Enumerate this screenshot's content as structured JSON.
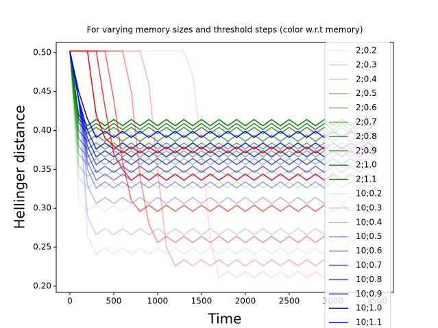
{
  "chart_data": {
    "type": "line",
    "title": "For varying memory sizes and threshold steps (color w.r.t memory)",
    "x_label": "Time",
    "y_label": "Hellinger distance",
    "xlim": [
      -156,
      3688
    ],
    "ylim": [
      0.192,
      0.513
    ],
    "xticks": [
      0,
      500,
      1000,
      1500,
      2000,
      2500,
      3000,
      3500
    ],
    "yticks": [
      {
        "value": 0.2,
        "label": "0.20"
      },
      0.25,
      {
        "value": 0.3,
        "label": "0.30"
      },
      0.35,
      {
        "value": 0.4,
        "label": "0.40"
      },
      0.45,
      {
        "value": 0.5,
        "label": "0.50"
      }
    ],
    "legend": "upper right",
    "x": [
      0,
      100,
      200,
      300,
      400,
      500,
      600,
      700,
      800,
      900,
      1000,
      1100,
      1200,
      1300,
      1400,
      1500,
      1600,
      1700,
      1800,
      1900,
      2000,
      2100,
      2200,
      2300,
      2400,
      2500,
      2600,
      2700,
      2800,
      2900,
      3000,
      3100,
      3200,
      3300,
      3400,
      3500
    ],
    "series": [
      {
        "name": "2;0.2",
        "color": "rgba(0,128,0,0.1)",
        "values": [
          0.502,
          0.31,
          0.296,
          0.304,
          0.296,
          0.304,
          0.296,
          0.304,
          0.296,
          0.304,
          0.296,
          0.304,
          0.296,
          0.304,
          0.296,
          0.304,
          0.296,
          0.304,
          0.296,
          0.304,
          0.296,
          0.304,
          0.296,
          0.304,
          0.296,
          0.304,
          0.296,
          0.304,
          0.296,
          0.304,
          0.296,
          0.304,
          0.296,
          0.304,
          0.296,
          0.304
        ]
      },
      {
        "name": "2;0.3",
        "color": "rgba(0,128,0,0.2)",
        "values": [
          0.502,
          0.34,
          0.326,
          0.334,
          0.326,
          0.334,
          0.326,
          0.334,
          0.326,
          0.334,
          0.326,
          0.334,
          0.326,
          0.334,
          0.326,
          0.334,
          0.326,
          0.334,
          0.326,
          0.334,
          0.326,
          0.334,
          0.326,
          0.334,
          0.326,
          0.334,
          0.326,
          0.334,
          0.326,
          0.334,
          0.326,
          0.334,
          0.326,
          0.334,
          0.326,
          0.334
        ]
      },
      {
        "name": "2;0.4",
        "color": "rgba(0,128,0,0.3)",
        "values": [
          0.502,
          0.355,
          0.341,
          0.349,
          0.341,
          0.349,
          0.341,
          0.349,
          0.341,
          0.349,
          0.341,
          0.349,
          0.341,
          0.349,
          0.341,
          0.349,
          0.341,
          0.349,
          0.341,
          0.349,
          0.341,
          0.349,
          0.341,
          0.349,
          0.341,
          0.349,
          0.341,
          0.349,
          0.341,
          0.349,
          0.341,
          0.349,
          0.341,
          0.349,
          0.341,
          0.349
        ]
      },
      {
        "name": "2;0.5",
        "color": "rgba(0,128,0,0.4)",
        "values": [
          0.502,
          0.37,
          0.356,
          0.364,
          0.356,
          0.364,
          0.356,
          0.364,
          0.356,
          0.364,
          0.356,
          0.364,
          0.356,
          0.364,
          0.356,
          0.364,
          0.356,
          0.364,
          0.356,
          0.364,
          0.356,
          0.364,
          0.356,
          0.364,
          0.356,
          0.364,
          0.356,
          0.364,
          0.356,
          0.364,
          0.356,
          0.364,
          0.356,
          0.364,
          0.356,
          0.364
        ]
      },
      {
        "name": "2;0.6",
        "color": "rgba(0,128,0,0.5)",
        "values": [
          0.502,
          0.38,
          0.366,
          0.374,
          0.366,
          0.374,
          0.366,
          0.374,
          0.366,
          0.374,
          0.366,
          0.374,
          0.366,
          0.374,
          0.366,
          0.374,
          0.366,
          0.374,
          0.366,
          0.374,
          0.366,
          0.374,
          0.366,
          0.374,
          0.366,
          0.374,
          0.366,
          0.374,
          0.366,
          0.374,
          0.366,
          0.374,
          0.366,
          0.374,
          0.366,
          0.374
        ]
      },
      {
        "name": "2;0.7",
        "color": "rgba(0,128,0,0.6)",
        "values": [
          0.502,
          0.39,
          0.376,
          0.384,
          0.376,
          0.384,
          0.376,
          0.384,
          0.376,
          0.384,
          0.376,
          0.384,
          0.376,
          0.384,
          0.376,
          0.384,
          0.376,
          0.384,
          0.376,
          0.384,
          0.376,
          0.384,
          0.376,
          0.384,
          0.376,
          0.384,
          0.376,
          0.384,
          0.376,
          0.384,
          0.376,
          0.384,
          0.376,
          0.384,
          0.376,
          0.384
        ]
      },
      {
        "name": "2;0.8",
        "color": "rgba(0,128,0,0.7)",
        "values": [
          0.502,
          0.4,
          0.386,
          0.394,
          0.386,
          0.394,
          0.386,
          0.394,
          0.386,
          0.394,
          0.386,
          0.394,
          0.386,
          0.394,
          0.386,
          0.394,
          0.386,
          0.394,
          0.386,
          0.394,
          0.386,
          0.394,
          0.386,
          0.394,
          0.386,
          0.394,
          0.386,
          0.394,
          0.386,
          0.394,
          0.386,
          0.394,
          0.386,
          0.394,
          0.386,
          0.394
        ]
      },
      {
        "name": "2;0.9",
        "color": "rgba(0,128,0,0.8)",
        "values": [
          0.502,
          0.41,
          0.396,
          0.404,
          0.396,
          0.404,
          0.396,
          0.404,
          0.396,
          0.404,
          0.396,
          0.404,
          0.396,
          0.404,
          0.396,
          0.404,
          0.396,
          0.404,
          0.396,
          0.404,
          0.396,
          0.404,
          0.396,
          0.404,
          0.396,
          0.404,
          0.396,
          0.404,
          0.396,
          0.404,
          0.396,
          0.404,
          0.396,
          0.404,
          0.396,
          0.404
        ]
      },
      {
        "name": "2;1.0",
        "color": "rgba(0,128,0,0.9)",
        "values": [
          0.502,
          0.415,
          0.401,
          0.409,
          0.401,
          0.409,
          0.401,
          0.409,
          0.401,
          0.409,
          0.401,
          0.409,
          0.401,
          0.409,
          0.401,
          0.409,
          0.401,
          0.409,
          0.401,
          0.409,
          0.401,
          0.409,
          0.401,
          0.409,
          0.401,
          0.409,
          0.401,
          0.409,
          0.401,
          0.409,
          0.401,
          0.409,
          0.401,
          0.409,
          0.401,
          0.409
        ]
      },
      {
        "name": "2;1.1",
        "color": "rgba(0,128,0,1)",
        "values": [
          0.502,
          0.42,
          0.406,
          0.414,
          0.406,
          0.414,
          0.406,
          0.414,
          0.406,
          0.414,
          0.406,
          0.414,
          0.406,
          0.414,
          0.406,
          0.414,
          0.406,
          0.414,
          0.406,
          0.414,
          0.406,
          0.414,
          0.406,
          0.414,
          0.406,
          0.414,
          0.406,
          0.414,
          0.406,
          0.414,
          0.406,
          0.414,
          0.406,
          0.414,
          0.406,
          0.414
        ]
      },
      {
        "name": "10;0.2",
        "color": "rgba(0,0,255,0.1)",
        "values": [
          0.502,
          0.44,
          0.265,
          0.241,
          0.249,
          0.241,
          0.249,
          0.241,
          0.249,
          0.241,
          0.249,
          0.241,
          0.249,
          0.241,
          0.249,
          0.241,
          0.249,
          0.241,
          0.249,
          0.241,
          0.249,
          0.241,
          0.249,
          0.241,
          0.249,
          0.241,
          0.249,
          0.241,
          0.249,
          0.241,
          0.249,
          0.241,
          0.249,
          0.241,
          0.249,
          0.241
        ]
      },
      {
        "name": "10;0.3",
        "color": "rgba(0,0,255,0.2)",
        "values": [
          0.502,
          0.44,
          0.29,
          0.266,
          0.274,
          0.266,
          0.274,
          0.266,
          0.274,
          0.266,
          0.274,
          0.266,
          0.274,
          0.266,
          0.274,
          0.266,
          0.274,
          0.266,
          0.274,
          0.266,
          0.274,
          0.266,
          0.274,
          0.266,
          0.274,
          0.266,
          0.274,
          0.266,
          0.274,
          0.266,
          0.274,
          0.266,
          0.274,
          0.266,
          0.274,
          0.266
        ]
      },
      {
        "name": "10;0.4",
        "color": "rgba(0,0,255,0.3)",
        "values": [
          0.502,
          0.44,
          0.33,
          0.306,
          0.314,
          0.306,
          0.314,
          0.306,
          0.314,
          0.306,
          0.314,
          0.306,
          0.314,
          0.306,
          0.314,
          0.306,
          0.314,
          0.306,
          0.314,
          0.306,
          0.314,
          0.306,
          0.314,
          0.306,
          0.314,
          0.306,
          0.314,
          0.306,
          0.314,
          0.306,
          0.314,
          0.306,
          0.314,
          0.306,
          0.314,
          0.306
        ]
      },
      {
        "name": "10;0.5",
        "color": "rgba(0,0,255,0.4)",
        "values": [
          0.502,
          0.44,
          0.35,
          0.326,
          0.334,
          0.326,
          0.334,
          0.326,
          0.334,
          0.326,
          0.334,
          0.326,
          0.334,
          0.326,
          0.334,
          0.326,
          0.334,
          0.326,
          0.334,
          0.326,
          0.334,
          0.326,
          0.334,
          0.326,
          0.334,
          0.326,
          0.334,
          0.326,
          0.334,
          0.326,
          0.334,
          0.326,
          0.334,
          0.326,
          0.334,
          0.326
        ]
      },
      {
        "name": "10;0.6",
        "color": "rgba(0,0,255,0.5)",
        "values": [
          0.502,
          0.44,
          0.36,
          0.336,
          0.344,
          0.336,
          0.344,
          0.336,
          0.344,
          0.336,
          0.344,
          0.336,
          0.344,
          0.336,
          0.344,
          0.336,
          0.344,
          0.336,
          0.344,
          0.336,
          0.344,
          0.336,
          0.344,
          0.336,
          0.344,
          0.336,
          0.344,
          0.336,
          0.344,
          0.336,
          0.344,
          0.336,
          0.344,
          0.336,
          0.344,
          0.336
        ]
      },
      {
        "name": "10;0.7",
        "color": "rgba(0,0,255,0.6)",
        "values": [
          0.502,
          0.44,
          0.37,
          0.346,
          0.354,
          0.346,
          0.354,
          0.346,
          0.354,
          0.346,
          0.354,
          0.346,
          0.354,
          0.346,
          0.354,
          0.346,
          0.354,
          0.346,
          0.354,
          0.346,
          0.354,
          0.346,
          0.354,
          0.346,
          0.354,
          0.346,
          0.354,
          0.346,
          0.354,
          0.346,
          0.354,
          0.346,
          0.354,
          0.346,
          0.354,
          0.346
        ]
      },
      {
        "name": "10;0.8",
        "color": "rgba(0,0,255,0.7)",
        "values": [
          0.502,
          0.44,
          0.38,
          0.356,
          0.364,
          0.356,
          0.364,
          0.356,
          0.364,
          0.356,
          0.364,
          0.356,
          0.364,
          0.356,
          0.364,
          0.356,
          0.364,
          0.356,
          0.364,
          0.356,
          0.364,
          0.356,
          0.364,
          0.356,
          0.364,
          0.356,
          0.364,
          0.356,
          0.364,
          0.356,
          0.364,
          0.356,
          0.364,
          0.356,
          0.364,
          0.356
        ]
      },
      {
        "name": "10;0.9",
        "color": "rgba(0,0,255,0.8)",
        "values": [
          0.502,
          0.44,
          0.39,
          0.366,
          0.374,
          0.366,
          0.374,
          0.366,
          0.374,
          0.366,
          0.374,
          0.366,
          0.374,
          0.366,
          0.374,
          0.366,
          0.374,
          0.366,
          0.374,
          0.366,
          0.374,
          0.366,
          0.374,
          0.366,
          0.374,
          0.366,
          0.374,
          0.366,
          0.374,
          0.366,
          0.374,
          0.366,
          0.374,
          0.366,
          0.374,
          0.366
        ]
      },
      {
        "name": "10;1.0",
        "color": "rgba(0,0,255,0.9)",
        "values": [
          0.502,
          0.44,
          0.4,
          0.376,
          0.384,
          0.376,
          0.384,
          0.376,
          0.384,
          0.376,
          0.384,
          0.376,
          0.384,
          0.376,
          0.384,
          0.376,
          0.384,
          0.376,
          0.384,
          0.376,
          0.384,
          0.376,
          0.384,
          0.376,
          0.384,
          0.376,
          0.384,
          0.376,
          0.384,
          0.376,
          0.384,
          0.376,
          0.384,
          0.376,
          0.384,
          0.376
        ]
      },
      {
        "name": "10;1.1",
        "color": "rgba(0,0,255,1)",
        "values": [
          0.502,
          0.45,
          0.415,
          0.391,
          0.399,
          0.391,
          0.399,
          0.391,
          0.399,
          0.391,
          0.399,
          0.391,
          0.399,
          0.391,
          0.399,
          0.391,
          0.399,
          0.391,
          0.399,
          0.391,
          0.399,
          0.391,
          0.399,
          0.391,
          0.399,
          0.391,
          0.399,
          0.391,
          0.399,
          0.391,
          0.399,
          0.391,
          0.399,
          0.391,
          0.399,
          0.391
        ]
      },
      {
        "color": "rgba(255,0,0,0.15)",
        "values": [
          0.502,
          0.502,
          0.502,
          0.502,
          0.502,
          0.502,
          0.502,
          0.502,
          0.502,
          0.502,
          0.502,
          0.502,
          0.502,
          0.502,
          0.47,
          0.38,
          0.26,
          0.211,
          0.219,
          0.211,
          0.219,
          0.211,
          0.219,
          0.211,
          0.219,
          0.211,
          0.219,
          0.211,
          0.219,
          0.211,
          0.219,
          0.211,
          0.219,
          0.211,
          0.219,
          0.211
        ]
      },
      {
        "color": "rgba(255,0,0,0.3)",
        "values": [
          0.502,
          0.502,
          0.502,
          0.502,
          0.502,
          0.502,
          0.502,
          0.502,
          0.502,
          0.46,
          0.35,
          0.25,
          0.226,
          0.234,
          0.226,
          0.234,
          0.226,
          0.234,
          0.226,
          0.234,
          0.226,
          0.234,
          0.226,
          0.234,
          0.226,
          0.234,
          0.226,
          0.234,
          0.226,
          0.234,
          0.226,
          0.234,
          0.226,
          0.234,
          0.226,
          0.234
        ]
      },
      {
        "color": "rgba(255,0,0,0.45)",
        "values": [
          0.502,
          0.502,
          0.502,
          0.502,
          0.502,
          0.502,
          0.502,
          0.45,
          0.34,
          0.28,
          0.256,
          0.264,
          0.256,
          0.264,
          0.256,
          0.264,
          0.256,
          0.264,
          0.256,
          0.264,
          0.256,
          0.264,
          0.256,
          0.264,
          0.256,
          0.264,
          0.256,
          0.264,
          0.256,
          0.264,
          0.256,
          0.264,
          0.256,
          0.264,
          0.256,
          0.264
        ]
      },
      {
        "color": "rgba(255,0,0,0.6)",
        "values": [
          0.502,
          0.502,
          0.502,
          0.502,
          0.502,
          0.44,
          0.36,
          0.31,
          0.296,
          0.304,
          0.296,
          0.304,
          0.296,
          0.304,
          0.296,
          0.304,
          0.296,
          0.304,
          0.296,
          0.304,
          0.296,
          0.304,
          0.296,
          0.304,
          0.296,
          0.304,
          0.296,
          0.304,
          0.296,
          0.304,
          0.296,
          0.304,
          0.296,
          0.304,
          0.296,
          0.304
        ]
      },
      {
        "color": "rgba(255,0,0,0.8)",
        "values": [
          0.502,
          0.502,
          0.502,
          0.502,
          0.43,
          0.37,
          0.35,
          0.336,
          0.344,
          0.336,
          0.344,
          0.336,
          0.344,
          0.336,
          0.344,
          0.336,
          0.344,
          0.336,
          0.344,
          0.336,
          0.344,
          0.336,
          0.344,
          0.336,
          0.344,
          0.336,
          0.344,
          0.336,
          0.344,
          0.336,
          0.344,
          0.336,
          0.344,
          0.336,
          0.344,
          0.336
        ]
      },
      {
        "color": "rgba(255,0,0,1)",
        "values": [
          0.502,
          0.502,
          0.502,
          0.42,
          0.39,
          0.38,
          0.371,
          0.379,
          0.371,
          0.379,
          0.371,
          0.379,
          0.371,
          0.379,
          0.371,
          0.379,
          0.371,
          0.379,
          0.371,
          0.379,
          0.371,
          0.379,
          0.371,
          0.379,
          0.371,
          0.379,
          0.371,
          0.379,
          0.371,
          0.379,
          0.371,
          0.379,
          0.371,
          0.379,
          0.371,
          0.379
        ]
      }
    ]
  }
}
